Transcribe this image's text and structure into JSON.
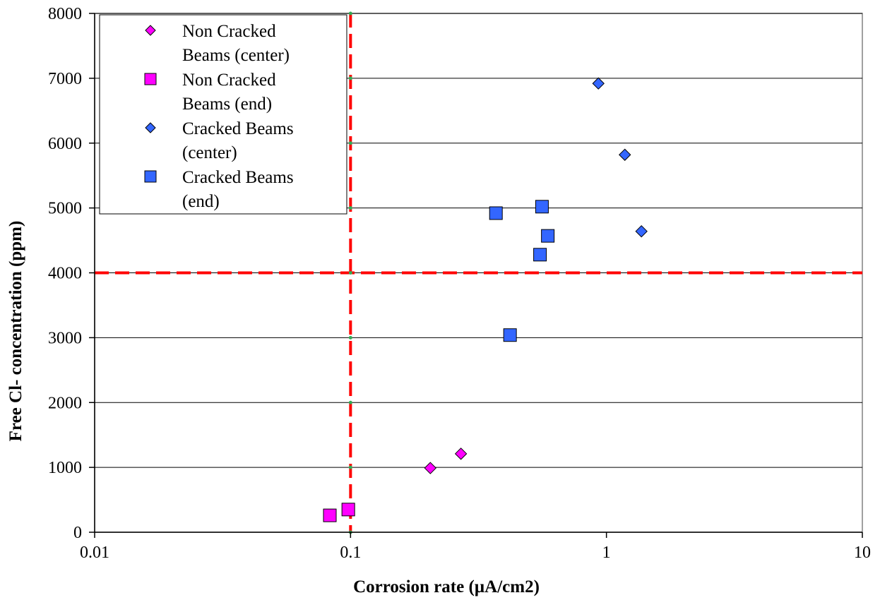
{
  "chart_data": {
    "type": "scatter",
    "xlabel": "Corrosion rate (µA/cm2)",
    "ylabel": "Free Cl- concentration (ppm)",
    "x_scale": "log",
    "xlim": [
      0.01,
      10
    ],
    "ylim": [
      0,
      8000
    ],
    "x_ticks": [
      "0.01",
      "0.1",
      "1",
      "10"
    ],
    "y_ticks": [
      "0",
      "1000",
      "2000",
      "3000",
      "4000",
      "5000",
      "6000",
      "7000",
      "8000"
    ],
    "x_tick_values": [
      0.01,
      0.1,
      1,
      10
    ],
    "y_tick_values": [
      0,
      1000,
      2000,
      3000,
      4000,
      5000,
      6000,
      7000,
      8000
    ],
    "grid": "horizontal",
    "legend_position": "top-left",
    "threshold_lines": {
      "x": 0.1,
      "y": 4000,
      "color": "#ff0000",
      "style": "dashed"
    },
    "series": [
      {
        "name": "Non Cracked Beams (center)",
        "legend_lines": [
          "Non Cracked",
          "Beams (center)"
        ],
        "marker": "diamond",
        "color": "#ff00ff",
        "x": [
          0.205,
          0.27
        ],
        "y": [
          990,
          1210
        ]
      },
      {
        "name": "Non Cracked Beams (end)",
        "legend_lines": [
          "Non Cracked",
          "Beams (end)"
        ],
        "marker": "square",
        "color": "#ff00ff",
        "x": [
          0.083,
          0.098
        ],
        "y": [
          260,
          350
        ]
      },
      {
        "name": "Cracked Beams (center)",
        "legend_lines": [
          "Cracked Beams",
          "(center)"
        ],
        "marker": "diamond",
        "color": "#3366ff",
        "x": [
          0.93,
          1.18,
          1.37
        ],
        "y": [
          6920,
          5820,
          4640
        ]
      },
      {
        "name": "Cracked Beams (end)",
        "legend_lines": [
          "Cracked Beams",
          "(end)"
        ],
        "marker": "square",
        "color": "#3366ff",
        "x": [
          0.37,
          0.42,
          0.55,
          0.56,
          0.59
        ],
        "y": [
          4920,
          3040,
          4280,
          5020,
          4570
        ]
      }
    ]
  }
}
